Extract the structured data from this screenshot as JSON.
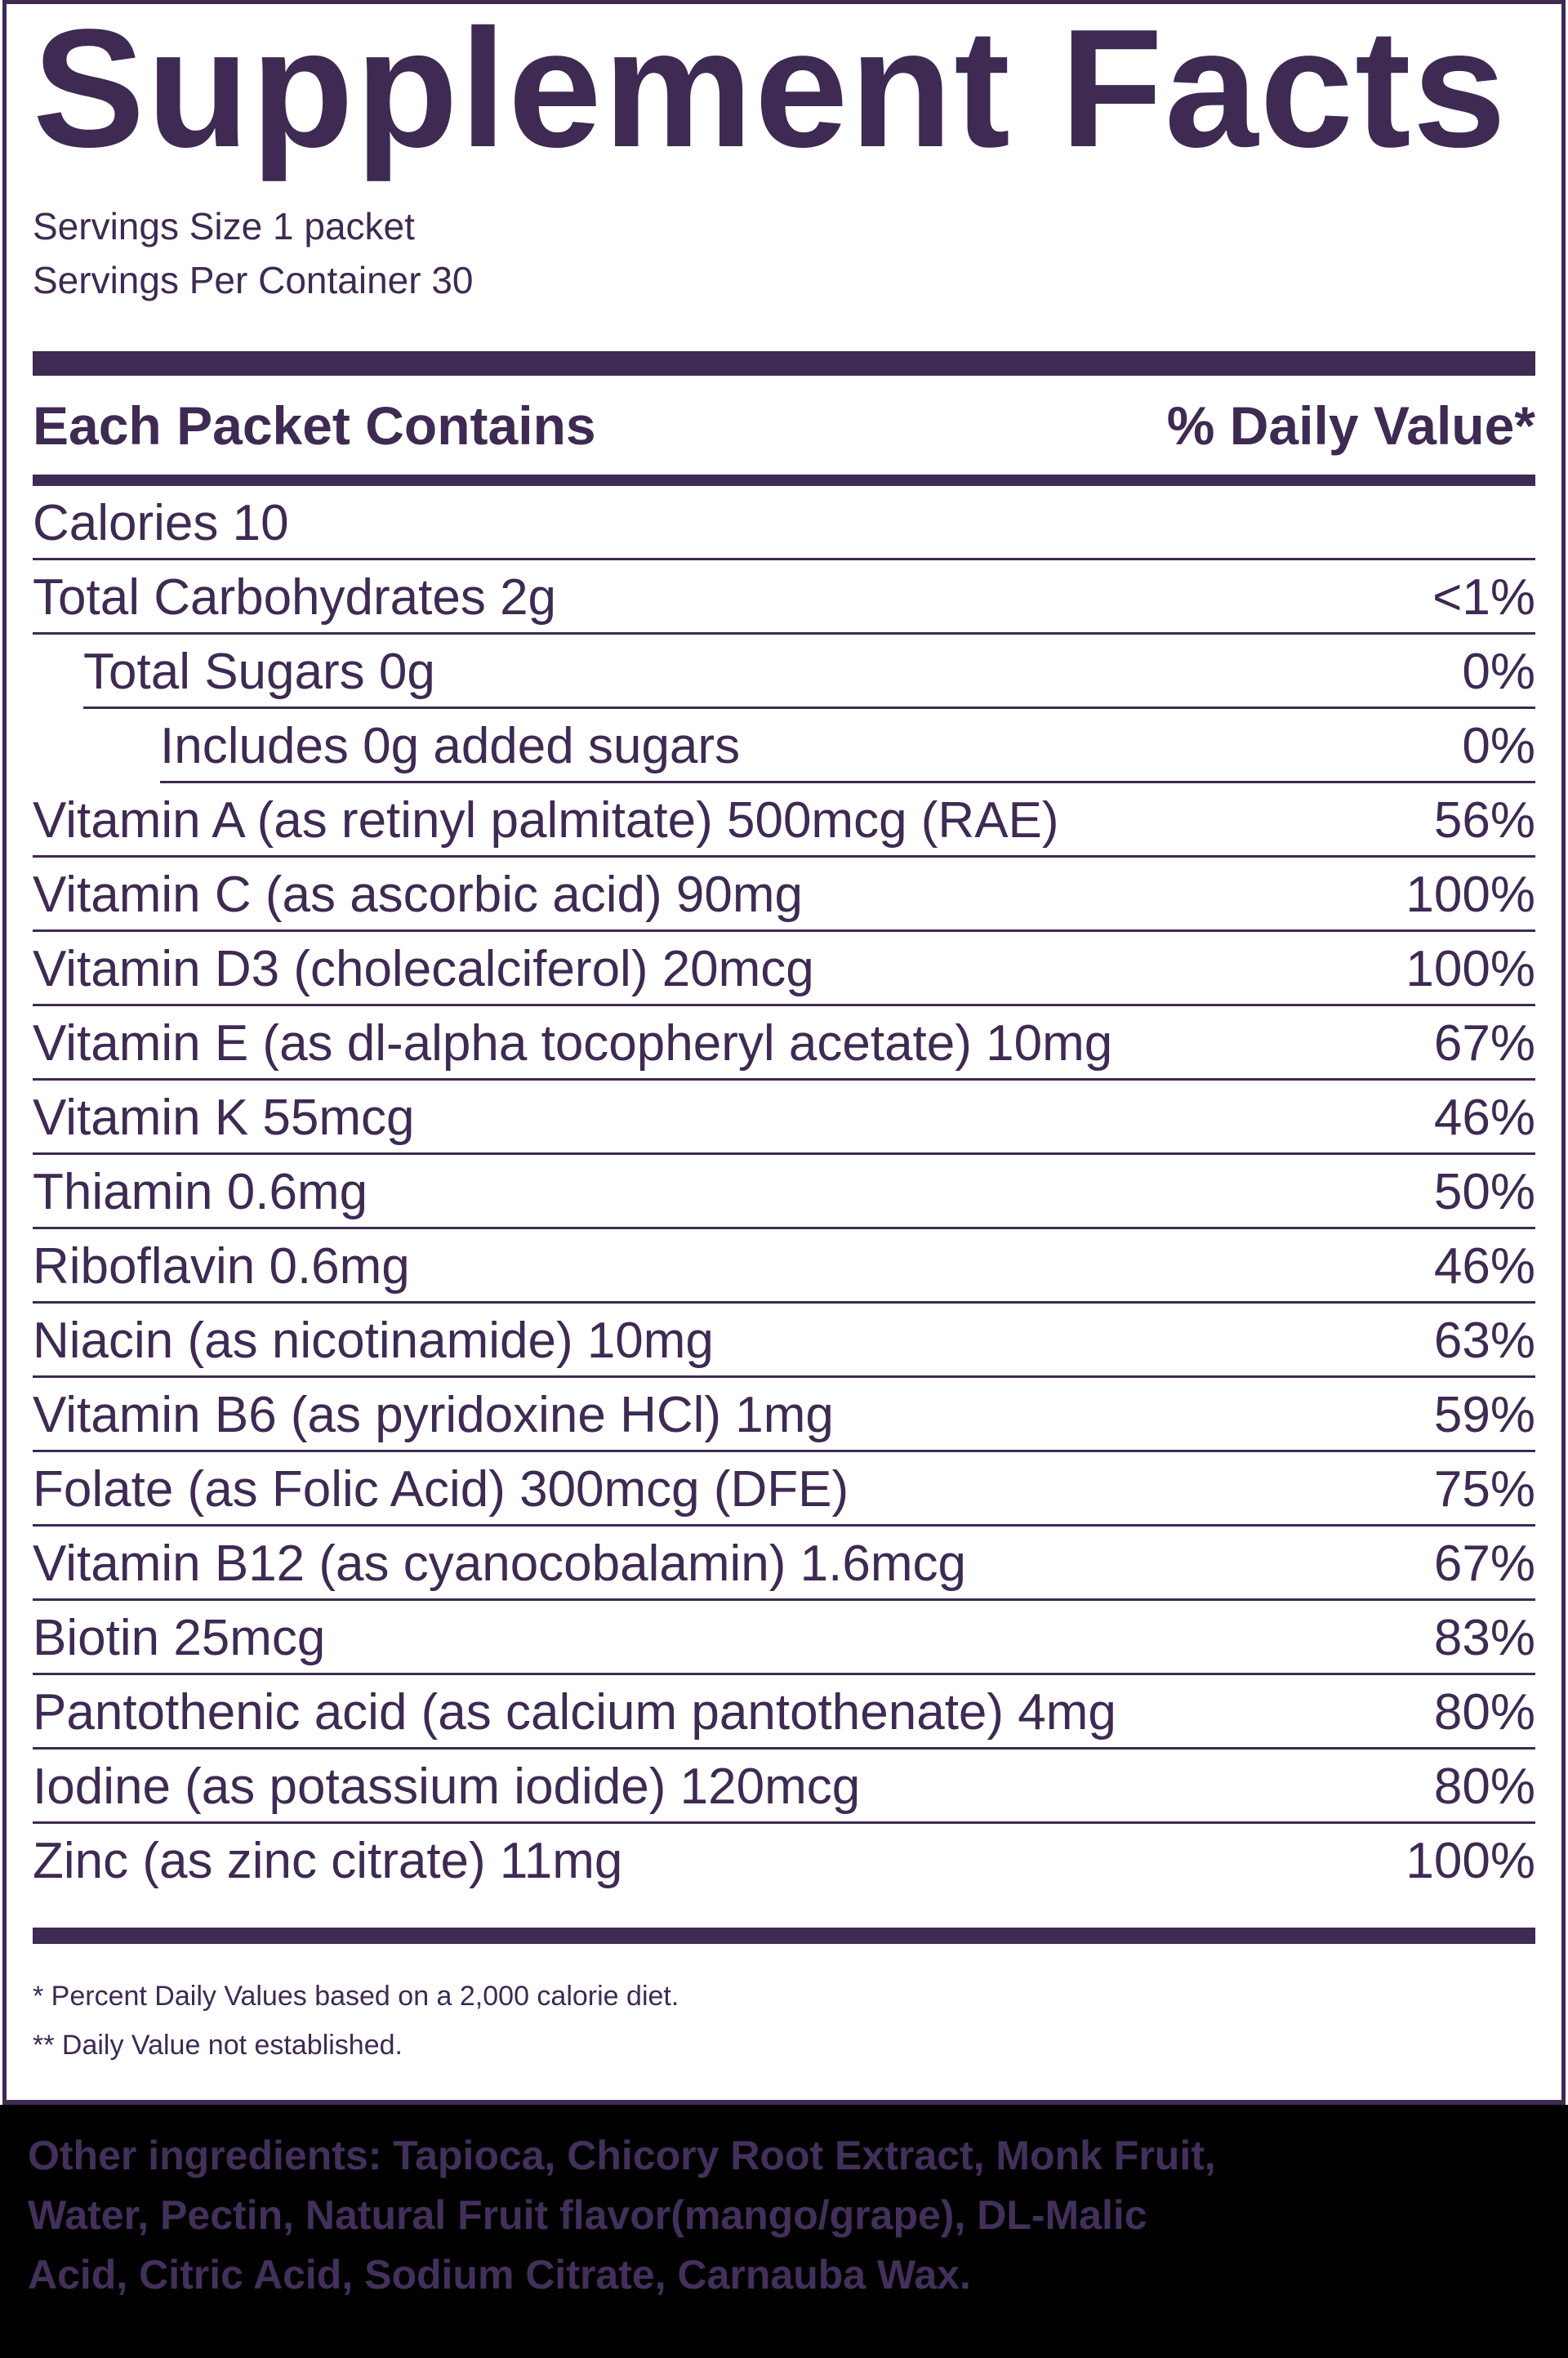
{
  "colors": {
    "purple": "#3E2A52",
    "footer_bg": "#000000",
    "footer_text": "#43305A"
  },
  "title": "Supplement Facts",
  "serving_info": {
    "size": "Servings Size 1 packet",
    "per_container": "Servings Per Container 30"
  },
  "table_header": {
    "left": "Each Packet Contains",
    "right": "% Daily Value*"
  },
  "rows": [
    {
      "label": "Calories 10",
      "value": "",
      "indent": 0
    },
    {
      "label": "Total Carbohydrates 2g",
      "value": "<1%",
      "indent": 0
    },
    {
      "label": "Total Sugars 0g",
      "value": "0%",
      "indent": 1
    },
    {
      "label": "Includes 0g added sugars",
      "value": "0%",
      "indent": 2
    },
    {
      "label": "Vitamin A (as retinyl palmitate) 500mcg (RAE)",
      "value": "56%",
      "indent": 0
    },
    {
      "label": "Vitamin C (as ascorbic acid) 90mg",
      "value": "100%",
      "indent": 0
    },
    {
      "label": "Vitamin D3 (cholecalciferol) 20mcg",
      "value": "100%",
      "indent": 0
    },
    {
      "label": "Vitamin E (as dl-alpha tocopheryl acetate) 10mg",
      "value": "67%",
      "indent": 0
    },
    {
      "label": "Vitamin K 55mcg",
      "value": "46%",
      "indent": 0
    },
    {
      "label": "Thiamin 0.6mg",
      "value": "50%",
      "indent": 0
    },
    {
      "label": "Riboflavin 0.6mg",
      "value": "46%",
      "indent": 0
    },
    {
      "label": "Niacin (as nicotinamide) 10mg",
      "value": "63%",
      "indent": 0
    },
    {
      "label": "Vitamin B6 (as pyridoxine HCl) 1mg",
      "value": "59%",
      "indent": 0
    },
    {
      "label": "Folate (as Folic Acid) 300mcg (DFE)",
      "value": "75%",
      "indent": 0
    },
    {
      "label": "Vitamin B12 (as cyanocobalamin) 1.6mcg",
      "value": "67%",
      "indent": 0
    },
    {
      "label": "Biotin 25mcg",
      "value": "83%",
      "indent": 0
    },
    {
      "label": "Pantothenic acid (as calcium pantothenate) 4mg",
      "value": "80%",
      "indent": 0
    },
    {
      "label": "Iodine (as potassium iodide) 120mcg",
      "value": "80%",
      "indent": 0
    },
    {
      "label": "Zinc (as zinc citrate) 11mg",
      "value": "100%",
      "indent": 0
    }
  ],
  "footnotes": {
    "line1": "* Percent Daily Values based on a 2,000 calorie diet.",
    "line2": "** Daily Value not established."
  },
  "other_ingredients": {
    "lines": [
      "Other ingredients: Tapioca, Chicory Root Extract, Monk Fruit,",
      "Water, Pectin, Natural Fruit flavor(mango/grape), DL-Malic",
      "Acid, Citric Acid, Sodium Citrate, Carnauba Wax."
    ]
  }
}
